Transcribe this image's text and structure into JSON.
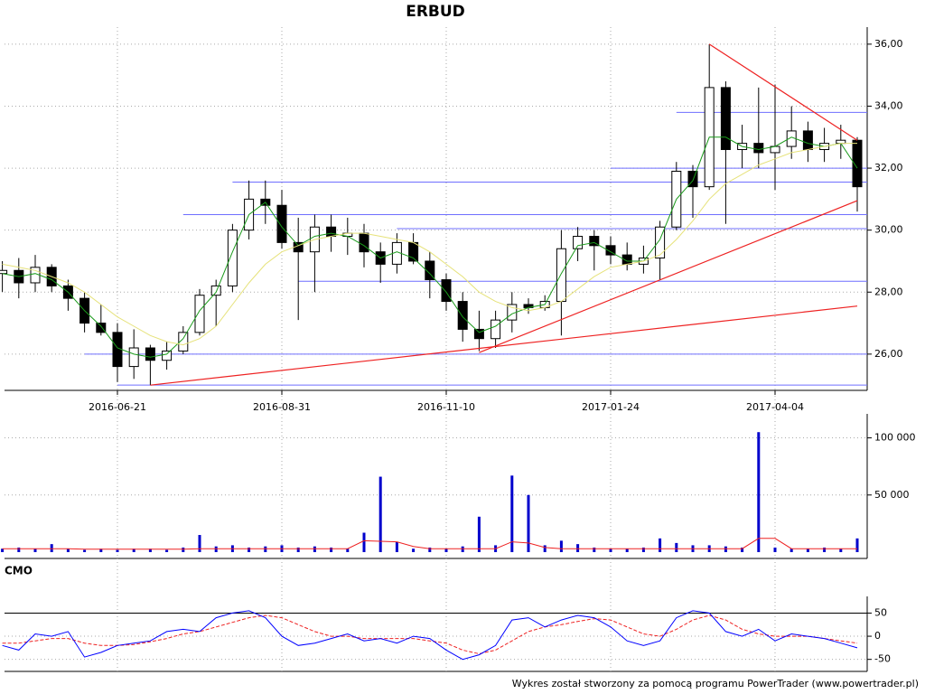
{
  "chart_data": [
    {
      "type": "candlestick",
      "title": "ERBUD",
      "categories": [
        null,
        null,
        null,
        null,
        null,
        null,
        null,
        "2016-06-21",
        null,
        null,
        null,
        null,
        null,
        null,
        null,
        null,
        null,
        "2016-08-31",
        null,
        null,
        null,
        null,
        null,
        null,
        null,
        null,
        null,
        "2016-11-10",
        null,
        null,
        null,
        null,
        null,
        null,
        null,
        null,
        null,
        "2017-01-24",
        null,
        null,
        null,
        null,
        null,
        null,
        null,
        null,
        null,
        "2017-04-04",
        null,
        null,
        null,
        null,
        null
      ],
      "open": [
        28.6,
        28.7,
        28.3,
        28.8,
        28.2,
        27.8,
        27.0,
        26.7,
        25.6,
        26.2,
        25.8,
        26.1,
        26.7,
        27.9,
        28.2,
        30.0,
        31.0,
        30.8,
        29.6,
        29.3,
        30.1,
        29.8,
        29.9,
        29.3,
        28.9,
        29.6,
        29.0,
        28.4,
        27.7,
        26.8,
        26.5,
        27.1,
        27.6,
        27.5,
        27.7,
        29.4,
        29.8,
        29.5,
        29.2,
        28.9,
        29.1,
        30.1,
        31.9,
        31.4,
        34.6,
        32.6,
        32.8,
        32.5,
        32.7,
        33.2,
        32.6,
        32.8,
        32.9
      ],
      "high": [
        29.0,
        29.1,
        29.2,
        28.9,
        28.4,
        28.0,
        27.6,
        27.0,
        26.8,
        26.3,
        26.4,
        26.9,
        28.1,
        28.4,
        30.2,
        31.6,
        31.6,
        31.3,
        30.4,
        30.5,
        30.5,
        30.4,
        30.2,
        29.6,
        29.9,
        29.9,
        29.3,
        28.6,
        28.0,
        27.4,
        27.4,
        28.0,
        27.8,
        27.9,
        30.0,
        30.1,
        30.0,
        29.8,
        29.6,
        29.5,
        30.3,
        32.2,
        32.1,
        36.0,
        34.8,
        33.4,
        34.6,
        34.7,
        34.0,
        33.5,
        33.3,
        33.4,
        33.0
      ],
      "low": [
        28.0,
        27.8,
        28.0,
        28.0,
        27.4,
        26.7,
        26.6,
        25.1,
        25.2,
        25.0,
        25.5,
        26.0,
        26.6,
        26.9,
        28.0,
        29.7,
        30.2,
        29.4,
        27.1,
        28.0,
        29.3,
        29.2,
        28.8,
        28.3,
        28.6,
        28.9,
        27.8,
        27.4,
        26.4,
        26.1,
        26.2,
        26.7,
        27.3,
        27.4,
        26.6,
        29.0,
        28.7,
        28.9,
        28.7,
        28.6,
        28.4,
        30.0,
        30.4,
        31.3,
        30.2,
        32.0,
        32.0,
        31.3,
        32.3,
        32.2,
        32.2,
        32.3,
        30.6
      ],
      "close": [
        28.7,
        28.3,
        28.8,
        28.2,
        27.8,
        27.0,
        26.7,
        25.6,
        26.2,
        25.8,
        26.1,
        26.7,
        27.9,
        28.2,
        30.0,
        31.0,
        30.8,
        29.6,
        29.3,
        30.1,
        29.8,
        29.9,
        29.3,
        28.9,
        29.6,
        29.0,
        28.4,
        27.7,
        26.8,
        26.5,
        27.1,
        27.6,
        27.5,
        27.7,
        29.4,
        29.8,
        29.5,
        29.2,
        28.9,
        29.1,
        30.1,
        31.9,
        31.4,
        34.6,
        32.6,
        32.8,
        32.5,
        32.7,
        33.2,
        32.6,
        32.8,
        32.9,
        31.4
      ],
      "lines": [
        {
          "color": "#1a9a1a",
          "values": [
            28.6,
            28.5,
            28.6,
            28.4,
            28.0,
            27.4,
            26.9,
            26.2,
            26.0,
            25.9,
            26.0,
            26.5,
            27.4,
            28.0,
            29.3,
            30.5,
            30.9,
            30.1,
            29.5,
            29.8,
            29.9,
            29.8,
            29.5,
            29.1,
            29.3,
            29.1,
            28.6,
            28.0,
            27.2,
            26.7,
            26.9,
            27.3,
            27.5,
            27.6,
            28.6,
            29.5,
            29.6,
            29.3,
            29.0,
            29.0,
            29.7,
            31.0,
            31.6,
            33.0,
            33.0,
            32.7,
            32.6,
            32.7,
            33.0,
            32.8,
            32.7,
            32.8,
            32.0
          ]
        },
        {
          "color": "#e6e27a",
          "values": [
            28.9,
            28.8,
            28.7,
            28.5,
            28.3,
            28.0,
            27.6,
            27.2,
            26.9,
            26.6,
            26.4,
            26.3,
            26.5,
            26.9,
            27.6,
            28.3,
            28.9,
            29.3,
            29.5,
            29.7,
            29.8,
            29.9,
            29.9,
            29.8,
            29.7,
            29.6,
            29.3,
            28.9,
            28.5,
            28.0,
            27.7,
            27.5,
            27.4,
            27.5,
            27.7,
            28.1,
            28.5,
            28.8,
            28.9,
            29.0,
            29.2,
            29.7,
            30.3,
            31.0,
            31.5,
            31.8,
            32.1,
            32.3,
            32.5,
            32.6,
            32.7,
            32.8,
            32.8
          ]
        }
      ],
      "hlines": {
        "color": "#6f6fff",
        "levels": [
          {
            "value": 25.0,
            "start": 7
          },
          {
            "value": 26.0,
            "start": 5
          },
          {
            "value": 28.35,
            "start": 18
          },
          {
            "value": 30.05,
            "start": 24
          },
          {
            "value": 30.5,
            "start": 11
          },
          {
            "value": 31.55,
            "start": 14
          },
          {
            "value": 32.0,
            "start": 37
          },
          {
            "value": 33.8,
            "start": 41
          }
        ]
      },
      "trendlines": {
        "color": "#ee2222",
        "lines": [
          [
            [
              9,
              25.0
            ],
            [
              52,
              27.55
            ]
          ],
          [
            [
              29,
              26.05
            ],
            [
              52,
              30.95
            ]
          ],
          [
            [
              43,
              36.0
            ],
            [
              52,
              32.9
            ]
          ]
        ]
      },
      "ylim": [
        24.83,
        36.55
      ],
      "yticks": [
        {
          "value": 26,
          "label": "26,00"
        },
        {
          "value": 28,
          "label": "28,00"
        },
        {
          "value": 30,
          "label": "30,00"
        },
        {
          "value": 32,
          "label": "32,00"
        },
        {
          "value": 34,
          "label": "34,00"
        },
        {
          "value": 36,
          "label": "36,00"
        }
      ],
      "grid": true
    },
    {
      "type": "bar",
      "color": "#0000cc",
      "values": [
        3000,
        4000,
        3000,
        7000,
        3000,
        2000,
        3000,
        2000,
        3000,
        3000,
        2000,
        4000,
        15000,
        5000,
        6000,
        4000,
        5000,
        6000,
        4000,
        5000,
        4000,
        3000,
        17000,
        66000,
        9000,
        3000,
        4000,
        3000,
        5000,
        31000,
        6000,
        67000,
        50000,
        6000,
        10000,
        7000,
        4000,
        3000,
        3000,
        4000,
        12000,
        8000,
        6000,
        6000,
        5000,
        4000,
        105000,
        4000,
        3000,
        3000,
        4000,
        3000,
        12000
      ],
      "average": {
        "color": "#ee2222",
        "values": [
          3000,
          3000,
          3000,
          3000,
          3000,
          2500,
          2500,
          2500,
          2500,
          2500,
          2500,
          2500,
          3000,
          3000,
          3000,
          3000,
          3000,
          3000,
          3000,
          3000,
          3000,
          3000,
          10000,
          9500,
          9000,
          5000,
          3000,
          3000,
          3000,
          3000,
          3000,
          9000,
          8000,
          4000,
          3000,
          3000,
          3000,
          3000,
          3000,
          3000,
          3000,
          3000,
          3000,
          3000,
          3000,
          3000,
          12000,
          12000,
          3000,
          3000,
          3000,
          3000,
          3000
        ]
      },
      "ylim": [
        0,
        121000
      ],
      "yticks": [
        {
          "value": 50000,
          "label": "50 000"
        },
        {
          "value": 100000,
          "label": "100 000"
        }
      ],
      "grid": true
    },
    {
      "type": "line",
      "title": "CMO",
      "color": "#0000ff",
      "values": [
        -20,
        -30,
        5,
        0,
        10,
        -45,
        -35,
        -20,
        -15,
        -10,
        10,
        15,
        10,
        40,
        50,
        55,
        40,
        0,
        -20,
        -15,
        -5,
        5,
        -10,
        -5,
        -15,
        0,
        -5,
        -30,
        -50,
        -40,
        -20,
        35,
        40,
        20,
        35,
        45,
        40,
        20,
        -10,
        -20,
        -10,
        40,
        55,
        50,
        10,
        0,
        15,
        -10,
        5,
        0,
        -5,
        -15,
        -25
      ],
      "signal": {
        "color": "#ee2222",
        "values": [
          -15,
          -15,
          -10,
          -5,
          -5,
          -15,
          -20,
          -20,
          -18,
          -12,
          -5,
          5,
          10,
          20,
          30,
          40,
          45,
          40,
          25,
          10,
          0,
          0,
          -5,
          -5,
          -5,
          -5,
          -10,
          -15,
          -30,
          -38,
          -30,
          -10,
          10,
          20,
          25,
          32,
          38,
          35,
          20,
          5,
          0,
          15,
          35,
          45,
          35,
          15,
          5,
          0,
          0,
          0,
          -5,
          -10,
          -15
        ]
      },
      "levels": [
        50
      ],
      "ylim": [
        -76,
        86
      ],
      "yticks": [
        -50,
        0,
        50
      ],
      "grid": true
    }
  ],
  "footer": "Wykres został stworzony za pomocą programu PowerTrader (www.powertrader.pl)"
}
